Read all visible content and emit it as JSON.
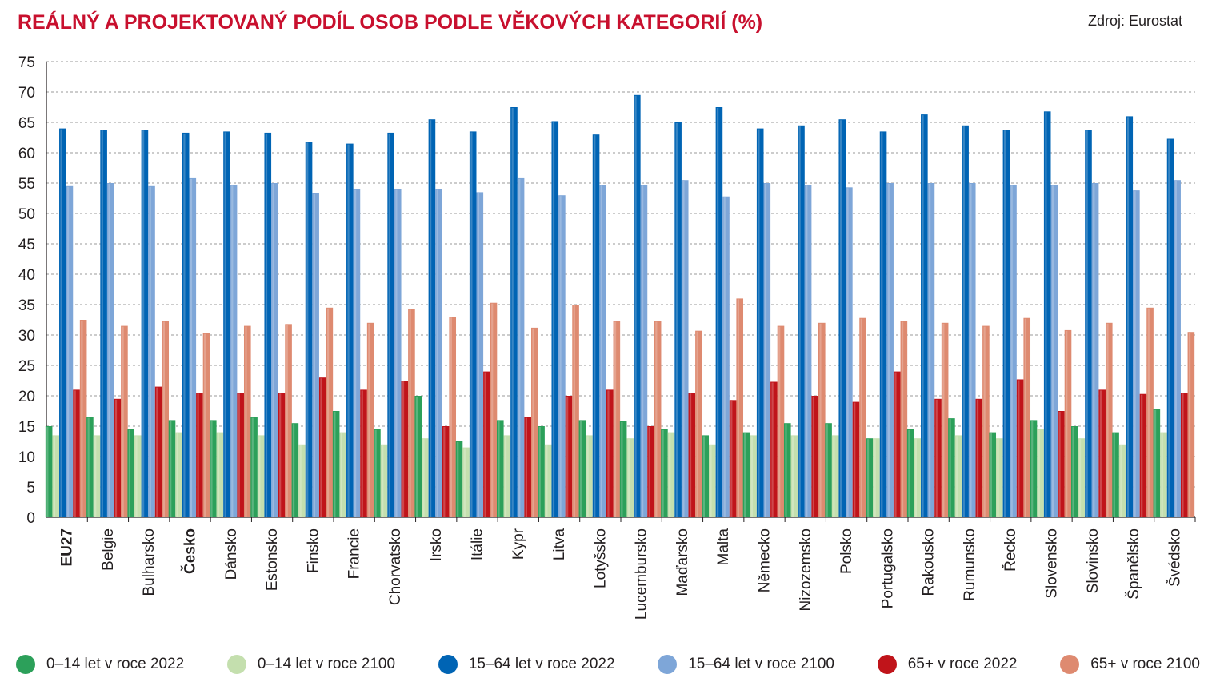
{
  "header": {
    "title": "REÁLNÝ A PROJEKTOVANÝ PODÍL OSOB PODLE VĚKOVÝCH KATEGORIÍ (%)",
    "source": "Zdroj: Eurostat"
  },
  "chart_data": {
    "type": "bar",
    "title": "REÁLNÝ A PROJEKTOVANÝ PODÍL OSOB PODLE VĚKOVÝCH KATEGORIÍ (%)",
    "xlabel": "",
    "ylabel": "",
    "ylim": [
      0,
      75
    ],
    "yticks": [
      0,
      5,
      10,
      15,
      20,
      25,
      30,
      35,
      40,
      45,
      50,
      55,
      60,
      65,
      70,
      75
    ],
    "grid": true,
    "legend_position": "bottom",
    "bold_categories": [
      "EU27",
      "Česko"
    ],
    "categories": [
      "EU27",
      "Belgie",
      "Bulharsko",
      "Česko",
      "Dánsko",
      "Estonsko",
      "Finsko",
      "Francie",
      "Chorvatsko",
      "Irsko",
      "Itálie",
      "Kypr",
      "Litva",
      "Lotyšsko",
      "Lucembursko",
      "Maďarsko",
      "Malta",
      "Německo",
      "Nizozemsko",
      "Polsko",
      "Portugalsko",
      "Rakousko",
      "Rumunsko",
      "Řecko",
      "Slovensko",
      "Slovinsko",
      "Španělsko",
      "Švédsko"
    ],
    "series": [
      {
        "name": "0–14 let v roce 2022",
        "color": "#2ca05a",
        "values": [
          15,
          16.5,
          14.5,
          16,
          16,
          16.5,
          15.5,
          17.5,
          14.5,
          20,
          12.5,
          16,
          15,
          16,
          15.8,
          14.5,
          13.5,
          14,
          15.5,
          15.5,
          13,
          14.5,
          16.3,
          14,
          16,
          15,
          14,
          17.8
        ]
      },
      {
        "name": "0–14 let v roce 2100",
        "color": "#c4dfae",
        "values": [
          13.5,
          13.5,
          13.5,
          14,
          14,
          13.5,
          12,
          14,
          12,
          13,
          11.5,
          13.5,
          12,
          13.5,
          13,
          14,
          12,
          13.5,
          13.5,
          13.5,
          13,
          13,
          13.5,
          13,
          14.5,
          13,
          12,
          14
        ]
      },
      {
        "name": "15–64 let v roce 2022",
        "color": "#0064b4",
        "values": [
          64,
          63.8,
          63.8,
          63.3,
          63.5,
          63.3,
          61.8,
          61.5,
          63.3,
          65.5,
          63.5,
          67.5,
          65.2,
          63,
          69.5,
          65,
          67.5,
          64,
          64.5,
          65.5,
          63.5,
          66.3,
          64.5,
          63.8,
          66.8,
          63.8,
          66,
          62.3
        ]
      },
      {
        "name": "15–64 let v roce 2100",
        "color": "#7ea6d8",
        "values": [
          54.5,
          55,
          54.5,
          55.8,
          54.7,
          55,
          53.3,
          54,
          54,
          54,
          53.5,
          55.8,
          53,
          54.7,
          54.7,
          55.5,
          52.8,
          55,
          54.7,
          54.3,
          55,
          55,
          55,
          54.7,
          54.7,
          55,
          53.8,
          55.5
        ]
      },
      {
        "name": "65+ v roce 2022",
        "color": "#c0141a",
        "values": [
          21,
          19.5,
          21.5,
          20.5,
          20.5,
          20.5,
          23,
          21,
          22.5,
          15,
          24,
          16.5,
          20,
          21,
          15,
          20.5,
          19.3,
          22.3,
          20,
          19,
          24,
          19.5,
          19.5,
          22.7,
          17.5,
          21,
          20.3,
          20.5
        ]
      },
      {
        "name": "65+ v roce 2100",
        "color": "#de8a70",
        "values": [
          32.5,
          31.5,
          32.3,
          30.3,
          31.5,
          31.8,
          34.5,
          32,
          34.3,
          33,
          35.3,
          31.2,
          35,
          32.3,
          32.3,
          30.7,
          36,
          31.5,
          32,
          32.8,
          32.3,
          32,
          31.5,
          32.8,
          30.8,
          32,
          34.5,
          30.5
        ]
      }
    ]
  }
}
